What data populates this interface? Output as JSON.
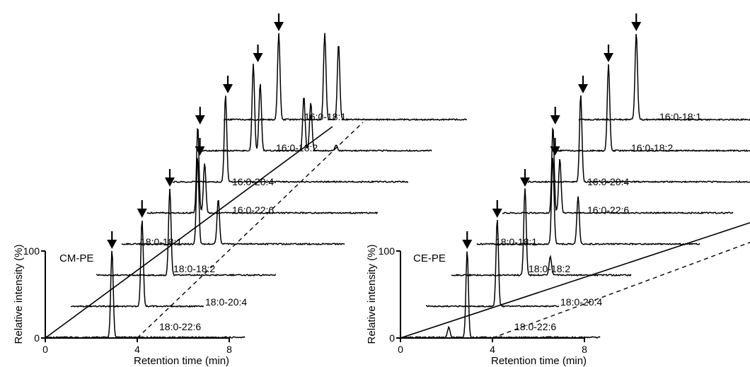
{
  "chart_data": [
    {
      "type": "line",
      "panel_label": "CM-PE",
      "xlabel": "Retention time (min)",
      "ylabel": "Relative intensity (%)",
      "x_ticks": [
        "0",
        "4",
        "8"
      ],
      "y_ticks": [
        "0",
        "100"
      ],
      "xlim": [
        0,
        8
      ],
      "ylim": [
        0,
        100
      ],
      "series": [
        {
          "name": "18:0-22:6",
          "peaks": [
            {
              "x": 2.9,
              "y": 100
            }
          ],
          "arrow_x": 2.9
        },
        {
          "name": "18:0-20:4",
          "peaks": [
            {
              "x": 3.1,
              "y": 100
            }
          ],
          "arrow_x": 3.1
        },
        {
          "name": "18:0-18:2",
          "peaks": [
            {
              "x": 3.2,
              "y": 100
            }
          ],
          "arrow_x": 3.2
        },
        {
          "name": "18:0-18:1",
          "peaks": [
            {
              "x": 3.3,
              "y": 100
            },
            {
              "x": 4.2,
              "y": 52
            }
          ],
          "arrow_x": 3.4
        },
        {
          "name": "16:0-22:6",
          "peaks": [
            {
              "x": 2.2,
              "y": 100
            },
            {
              "x": 2.5,
              "y": 58
            }
          ],
          "arrow_x": 2.3
        },
        {
          "name": "16:0-20:4",
          "peaks": [
            {
              "x": 2.3,
              "y": 100
            }
          ],
          "arrow_x": 2.4
        },
        {
          "name": "16:0-18:2",
          "peaks": [
            {
              "x": 2.4,
              "y": 100
            },
            {
              "x": 2.7,
              "y": 78
            },
            {
              "x": 4.6,
              "y": 62
            },
            {
              "x": 4.9,
              "y": 56
            },
            {
              "x": 6.0,
              "y": 6
            }
          ],
          "arrow_x": 2.6
        },
        {
          "name": "16:0-18:1",
          "peaks": [
            {
              "x": 2.4,
              "y": 100
            },
            {
              "x": 4.4,
              "y": 100
            },
            {
              "x": 5.0,
              "y": 88
            }
          ],
          "arrow_x": 2.4
        }
      ]
    },
    {
      "type": "line",
      "panel_label": "CE-PE",
      "xlabel": "Retention time (min)",
      "ylabel": "Relative intensity (%)",
      "x_ticks": [
        "0",
        "4",
        "8"
      ],
      "y_ticks": [
        "0",
        "100"
      ],
      "xlim": [
        0,
        8
      ],
      "ylim": [
        0,
        100
      ],
      "series": [
        {
          "name": "18:0-22:6",
          "peaks": [
            {
              "x": 2.9,
              "y": 100
            },
            {
              "x": 2.1,
              "y": 12
            }
          ],
          "arrow_x": 2.9
        },
        {
          "name": "18:0-20:4",
          "peaks": [
            {
              "x": 3.1,
              "y": 100
            }
          ],
          "arrow_x": 3.1
        },
        {
          "name": "18:0-18:2",
          "peaks": [
            {
              "x": 3.2,
              "y": 100
            },
            {
              "x": 4.3,
              "y": 22
            }
          ],
          "arrow_x": 3.2
        },
        {
          "name": "18:0-18:1",
          "peaks": [
            {
              "x": 3.3,
              "y": 100
            },
            {
              "x": 4.4,
              "y": 55
            }
          ],
          "arrow_x": 3.4
        },
        {
          "name": "16:0-22:6",
          "peaks": [
            {
              "x": 2.2,
              "y": 100
            },
            {
              "x": 2.5,
              "y": 62
            }
          ],
          "arrow_x": 2.3
        },
        {
          "name": "16:0-20:4",
          "peaks": [
            {
              "x": 2.3,
              "y": 100
            }
          ],
          "arrow_x": 2.4
        },
        {
          "name": "16:0-18:2",
          "peaks": [
            {
              "x": 2.4,
              "y": 100
            }
          ],
          "arrow_x": 2.4
        },
        {
          "name": "16:0-18:1",
          "peaks": [
            {
              "x": 2.5,
              "y": 100
            }
          ],
          "arrow_x": 2.5
        }
      ]
    }
  ]
}
